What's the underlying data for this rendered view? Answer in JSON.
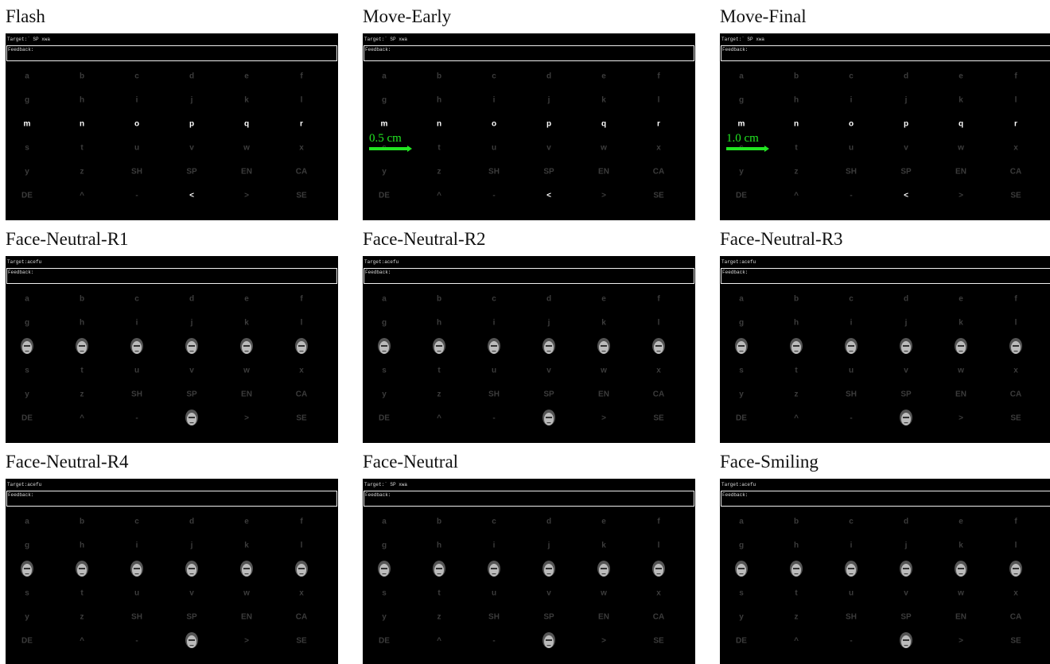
{
  "grid": [
    [
      "a",
      "b",
      "c",
      "d",
      "e",
      "f"
    ],
    [
      "g",
      "h",
      "i",
      "j",
      "k",
      "l"
    ],
    [
      "m",
      "n",
      "o",
      "p",
      "q",
      "r"
    ],
    [
      "s",
      "t",
      "u",
      "v",
      "w",
      "x"
    ],
    [
      "y",
      "z",
      "SH",
      "SP",
      "EN",
      "CA"
    ],
    [
      "DE",
      "^",
      "-",
      "<",
      ">",
      "SE"
    ]
  ],
  "flashed": [
    "m",
    "n",
    "o",
    "p",
    "q",
    "r",
    "<"
  ],
  "panels": [
    {
      "title": "Flash",
      "target": "Target:` SP xwa",
      "feedback": "Feedback:",
      "style": "letters"
    },
    {
      "title": "Move-Early",
      "target": "Target:` SP xwa",
      "feedback": "Feedback:",
      "style": "letters",
      "annotation": "0.5 cm"
    },
    {
      "title": "Move-Final",
      "target": "Target:` SP xwa",
      "feedback": "Feedback:",
      "style": "letters",
      "annotation": "1.0 cm"
    },
    {
      "title": "Face-Neutral-R1",
      "target": "Target:acefu",
      "feedback": "Feedback:",
      "style": "faces"
    },
    {
      "title": "Face-Neutral-R2",
      "target": "Target:acefu",
      "feedback": "Feedback:",
      "style": "faces"
    },
    {
      "title": "Face-Neutral-R3",
      "target": "Target:acefu",
      "feedback": "Feedback:",
      "style": "faces"
    },
    {
      "title": "Face-Neutral-R4",
      "target": "Target:acefu",
      "feedback": "Feedback:",
      "style": "faces"
    },
    {
      "title": "Face-Neutral",
      "target": "Target:` SP xwa",
      "feedback": "Feedback:",
      "style": "faces"
    },
    {
      "title": "Face-Smiling",
      "target": "Target:acefu",
      "feedback": "Feedback:",
      "style": "faces"
    }
  ]
}
